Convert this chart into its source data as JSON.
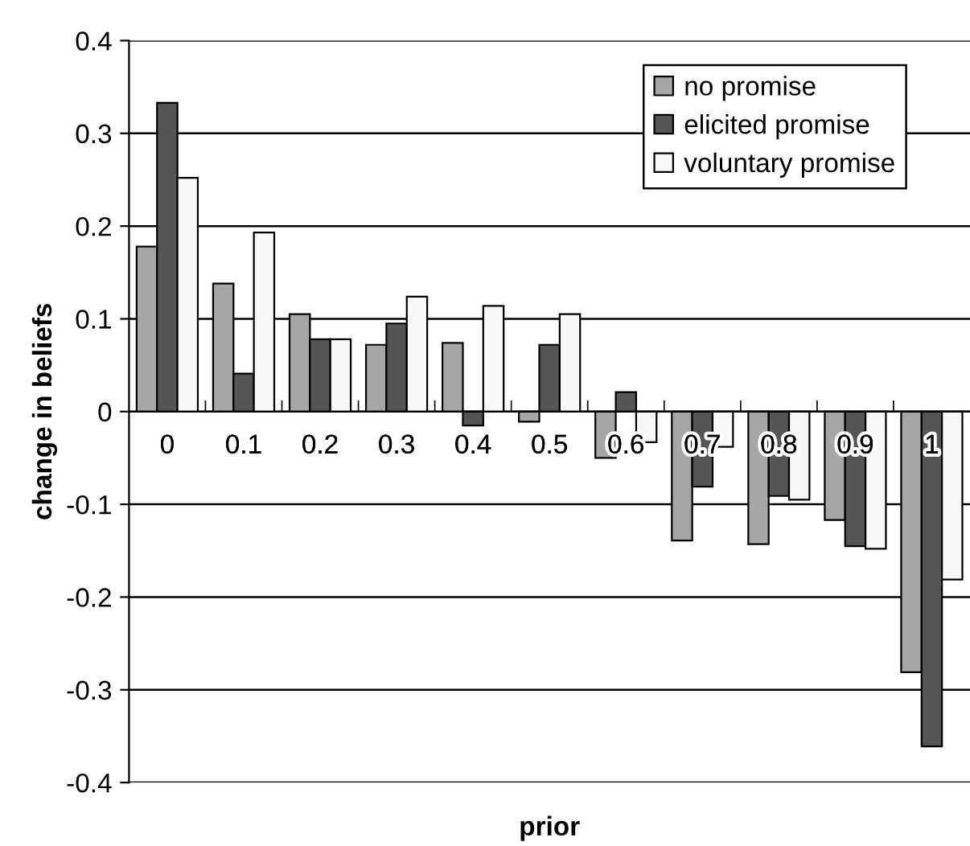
{
  "chart_data": {
    "type": "bar",
    "xlabel": "prior",
    "ylabel": "change in beliefs",
    "categories": [
      "0",
      "0.1",
      "0.2",
      "0.3",
      "0.4",
      "0.5",
      "0.6",
      "0.7",
      "0.8",
      "0.9",
      "1"
    ],
    "series": [
      {
        "name": "no promise",
        "color": "#a6a6a6",
        "values": [
          0.178,
          0.138,
          0.105,
          0.072,
          0.074,
          -0.011,
          -0.05,
          -0.139,
          -0.143,
          -0.117,
          -0.281
        ]
      },
      {
        "name": "elicited promise",
        "color": "#555555",
        "values": [
          0.333,
          0.041,
          0.078,
          0.095,
          -0.015,
          0.072,
          0.021,
          -0.081,
          -0.091,
          -0.145,
          -0.361
        ]
      },
      {
        "name": "voluntary promise",
        "color": "#f8f8f8",
        "values": [
          0.252,
          0.193,
          0.078,
          0.124,
          0.114,
          0.105,
          -0.033,
          -0.038,
          -0.095,
          -0.148,
          -0.181
        ]
      }
    ],
    "ylim": [
      -0.4,
      0.4
    ],
    "yticks": [
      -0.4,
      -0.3,
      -0.2,
      -0.1,
      0,
      0.1,
      0.2,
      0.3,
      0.4
    ],
    "grid": "y",
    "legend": "top right"
  }
}
